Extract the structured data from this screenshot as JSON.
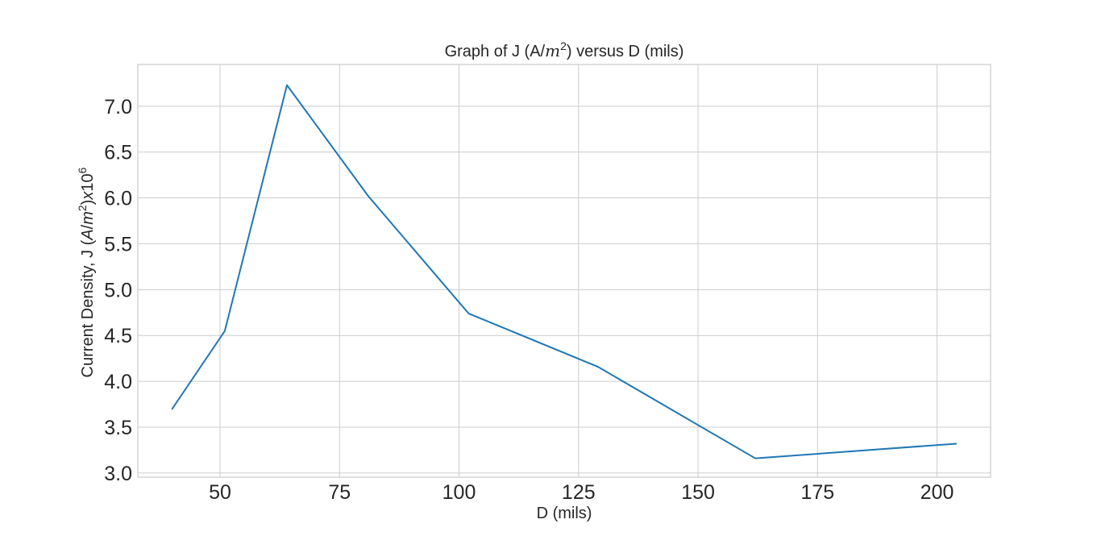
{
  "chart_data": {
    "type": "line",
    "title": "Graph of J (A/m²) versus D (mils)",
    "title_parts": [
      "Graph of J (A/",
      "m",
      "2",
      ") versus D (mils)"
    ],
    "xlabel": "D (mils)",
    "ylabel": "Current Density, J (A/m²)x10⁶",
    "ylabel_parts": [
      "Current Density, J (",
      "A",
      "/",
      "m",
      "2",
      ")",
      "x",
      "10",
      "6"
    ],
    "xlim": [
      32.8,
      211.2
    ],
    "ylim": [
      2.955,
      7.455
    ],
    "xticks": [
      50,
      75,
      100,
      125,
      150,
      175,
      200
    ],
    "yticks": [
      3.0,
      3.5,
      4.0,
      4.5,
      5.0,
      5.5,
      6.0,
      6.5,
      7.0
    ],
    "xtick_labels": [
      "50",
      "75",
      "100",
      "125",
      "150",
      "175",
      "200"
    ],
    "ytick_labels": [
      "3.0",
      "3.5",
      "4.0",
      "4.5",
      "5.0",
      "5.5",
      "6.0",
      "6.5",
      "7.0"
    ],
    "grid": true,
    "series": [
      {
        "x": [
          40,
          51,
          64,
          81,
          102,
          129,
          162,
          204
        ],
        "y": [
          3.7,
          4.55,
          7.23,
          6.02,
          4.74,
          4.16,
          3.16,
          3.32
        ],
        "color": "#1f77b4"
      }
    ]
  }
}
